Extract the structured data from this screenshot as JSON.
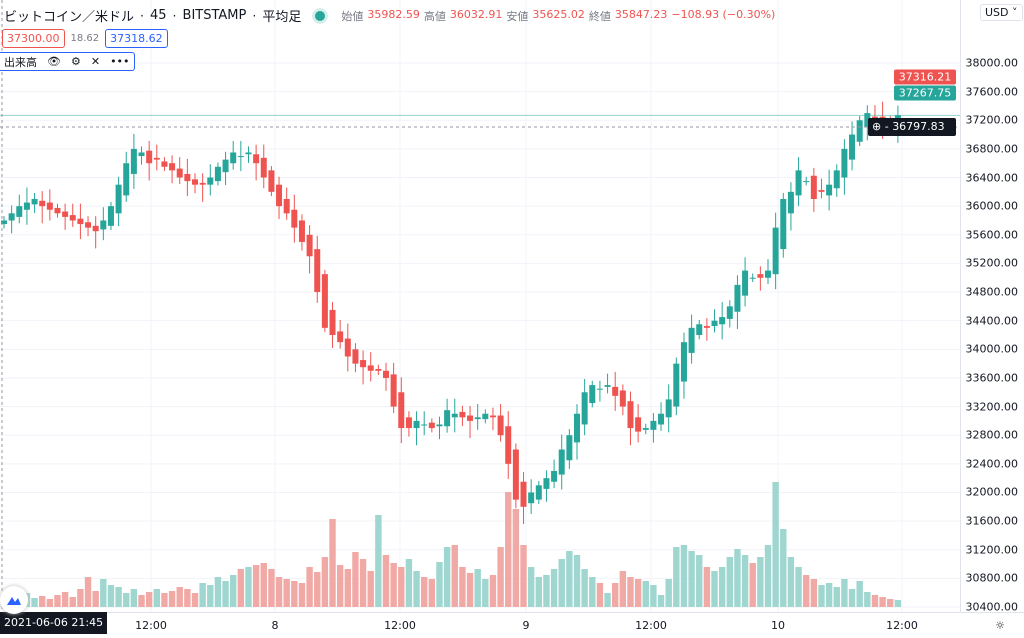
{
  "header": {
    "symbol": "ビットコイン／米ドル",
    "interval": "45",
    "exchange": "BITSTAMP",
    "chart_type": "平均足",
    "ohlc": [
      {
        "label": "始値",
        "value": "35982.59"
      },
      {
        "label": "高値",
        "value": "36032.91"
      },
      {
        "label": "安値",
        "value": "35625.02"
      },
      {
        "label": "終値",
        "value": "35847.23"
      }
    ],
    "change": "−108.93 (−0.30%)",
    "bid": "37300.00",
    "spread": "18.62",
    "ask": "37318.62"
  },
  "volume_indicator": {
    "label": "出来高"
  },
  "currency": "USD",
  "price_tags": {
    "high_tag": "37316.21",
    "last_price": "37267.75",
    "crosshair_price": "36797.83"
  },
  "crosshair_time": "2021-06-06  21:45",
  "colors": {
    "up": "#26a69a",
    "down": "#ef5350",
    "up_vol": "#9fd6d0",
    "down_vol": "#f1a9a6"
  },
  "chart_data": {
    "type": "candlestick",
    "title": "ビットコイン／米ドル · 45 · BITSTAMP · 平均足",
    "x_ticks": [
      "12:00",
      "8",
      "12:00",
      "9",
      "12:00",
      "10",
      "12:00"
    ],
    "y_ticks": [
      "38000.00",
      "37600.00",
      "37200.00",
      "36800.00",
      "36400.00",
      "36000.00",
      "35600.00",
      "35200.00",
      "34800.00",
      "34400.00",
      "34000.00",
      "33600.00",
      "33200.00",
      "32800.00",
      "32400.00",
      "32000.00",
      "31600.00",
      "31200.00",
      "30800.00",
      "30400.00"
    ],
    "ylim": [
      30400,
      38000
    ],
    "closes": [
      35800,
      35900,
      36000,
      36050,
      36100,
      36000,
      35950,
      35900,
      35850,
      35800,
      35750,
      35700,
      35650,
      35800,
      36000,
      36300,
      36600,
      36800,
      36750,
      36600,
      36650,
      36550,
      36500,
      36400,
      36350,
      36300,
      36300,
      36400,
      36550,
      36650,
      36750,
      36700,
      36750,
      36600,
      36400,
      36200,
      36000,
      35900,
      35700,
      35500,
      35300,
      34800,
      34300,
      34200,
      34100,
      33900,
      33800,
      33750,
      33700,
      33700,
      33600,
      33200,
      32900,
      32900,
      33000,
      32950,
      32900,
      32950,
      33150,
      33100,
      33050,
      33000,
      33050,
      33100,
      33050,
      32800,
      32400,
      31900,
      31800,
      32000,
      32100,
      32200,
      32300,
      32600,
      32800,
      33100,
      33400,
      33500,
      33450,
      33500,
      33350,
      33200,
      32900,
      32850,
      32900,
      33000,
      33100,
      33300,
      33800,
      34100,
      34300,
      34350,
      34300,
      34400,
      34450,
      34600,
      34900,
      35100,
      35000,
      35000,
      35100,
      35700,
      36100,
      36200,
      36500,
      36350,
      36100,
      36200,
      36300,
      36500,
      36800,
      37000,
      37200,
      37300,
      37200,
      37150,
      37100,
      37270
    ],
    "volumes": [
      10,
      12,
      8,
      14,
      9,
      11,
      8,
      12,
      15,
      10,
      18,
      30,
      16,
      28,
      22,
      20,
      14,
      18,
      12,
      15,
      18,
      14,
      16,
      20,
      18,
      14,
      24,
      22,
      30,
      26,
      32,
      38,
      40,
      42,
      44,
      38,
      30,
      28,
      26,
      24,
      40,
      35,
      50,
      88,
      42,
      38,
      55,
      48,
      36,
      92,
      52,
      44,
      40,
      48,
      36,
      30,
      28,
      45,
      60,
      62,
      40,
      34,
      38,
      28,
      32,
      60,
      115,
      98,
      62,
      40,
      30,
      32,
      38,
      48,
      56,
      52,
      38,
      30,
      24,
      14,
      24,
      36,
      30,
      28,
      26,
      22,
      12,
      28,
      60,
      62,
      56,
      52,
      40,
      36,
      40,
      50,
      58,
      52,
      44,
      50,
      62,
      125,
      78,
      50,
      40,
      32,
      28,
      22,
      24,
      20,
      28,
      18,
      26,
      15,
      12,
      10,
      8,
      7
    ]
  }
}
